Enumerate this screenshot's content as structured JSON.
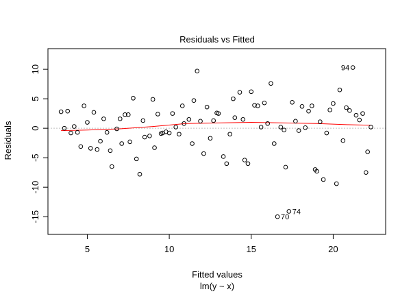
{
  "chart_data": {
    "type": "scatter",
    "title": "Residuals vs Fitted",
    "xlabel": "Fitted values",
    "sublabel": "lm(y ~ x)",
    "ylabel": "Residuals",
    "xlim": [
      2.6,
      23.2
    ],
    "ylim": [
      -18.0,
      13.5
    ],
    "xticks": [
      5,
      10,
      15,
      20
    ],
    "yticks": [
      -15,
      -10,
      -5,
      0,
      5,
      10
    ],
    "reference_line": 0,
    "grid": false,
    "colors": {
      "points": "#000000",
      "smooth": "#ff0000",
      "reference": "#bfbfbf"
    },
    "points": [
      [
        3.4,
        2.8
      ],
      [
        3.6,
        0.0
      ],
      [
        3.8,
        2.9
      ],
      [
        4.0,
        -0.8
      ],
      [
        4.2,
        0.3
      ],
      [
        4.4,
        -0.7
      ],
      [
        4.6,
        -3.1
      ],
      [
        4.8,
        3.8
      ],
      [
        5.0,
        1.0
      ],
      [
        5.2,
        -3.4
      ],
      [
        5.4,
        2.7
      ],
      [
        5.6,
        -3.6
      ],
      [
        5.8,
        -2.2
      ],
      [
        6.0,
        1.6
      ],
      [
        6.2,
        -0.7
      ],
      [
        6.4,
        -3.8
      ],
      [
        6.5,
        -6.5
      ],
      [
        6.8,
        -0.1
      ],
      [
        7.0,
        1.6
      ],
      [
        7.1,
        -2.6
      ],
      [
        7.3,
        2.3
      ],
      [
        7.5,
        2.3
      ],
      [
        7.6,
        -2.3
      ],
      [
        7.8,
        5.1
      ],
      [
        8.0,
        -5.2
      ],
      [
        8.2,
        -7.8
      ],
      [
        8.4,
        1.3
      ],
      [
        8.5,
        -1.5
      ],
      [
        8.8,
        -1.3
      ],
      [
        9.0,
        4.9
      ],
      [
        9.1,
        -3.3
      ],
      [
        9.3,
        2.4
      ],
      [
        9.5,
        -0.9
      ],
      [
        9.6,
        -0.8
      ],
      [
        9.8,
        -0.6
      ],
      [
        10.0,
        -0.8
      ],
      [
        10.2,
        2.5
      ],
      [
        10.4,
        0.2
      ],
      [
        10.6,
        -1.0
      ],
      [
        10.8,
        3.8
      ],
      [
        10.9,
        0.8
      ],
      [
        11.2,
        1.5
      ],
      [
        11.4,
        -2.6
      ],
      [
        11.5,
        4.7
      ],
      [
        11.7,
        9.7
      ],
      [
        11.9,
        1.2
      ],
      [
        12.1,
        -4.3
      ],
      [
        12.3,
        3.6
      ],
      [
        12.5,
        -1.7
      ],
      [
        12.7,
        1.3
      ],
      [
        12.9,
        2.6
      ],
      [
        13.0,
        2.5
      ],
      [
        13.3,
        -4.8
      ],
      [
        13.5,
        -6.0
      ],
      [
        13.7,
        -1.0
      ],
      [
        13.9,
        5.0
      ],
      [
        14.0,
        1.8
      ],
      [
        14.3,
        6.1
      ],
      [
        14.5,
        1.5
      ],
      [
        14.6,
        -5.4
      ],
      [
        14.8,
        -6.0
      ],
      [
        15.0,
        6.2
      ],
      [
        15.2,
        3.9
      ],
      [
        15.4,
        3.8
      ],
      [
        15.6,
        0.2
      ],
      [
        15.8,
        4.3
      ],
      [
        16.0,
        0.8
      ],
      [
        16.2,
        7.6
      ],
      [
        16.4,
        -2.6
      ],
      [
        16.6,
        -15.0
      ],
      [
        16.8,
        0.2
      ],
      [
        17.0,
        -0.3
      ],
      [
        17.1,
        -6.6
      ],
      [
        17.3,
        -14.1
      ],
      [
        17.5,
        4.4
      ],
      [
        17.7,
        1.2
      ],
      [
        17.9,
        -0.4
      ],
      [
        18.1,
        3.7
      ],
      [
        18.3,
        0.1
      ],
      [
        18.5,
        2.9
      ],
      [
        18.7,
        3.8
      ],
      [
        18.9,
        -7.0
      ],
      [
        19.0,
        -7.3
      ],
      [
        19.2,
        1.1
      ],
      [
        19.4,
        -8.7
      ],
      [
        19.6,
        -0.8
      ],
      [
        19.8,
        3.1
      ],
      [
        20.0,
        4.2
      ],
      [
        20.2,
        -9.4
      ],
      [
        20.4,
        6.5
      ],
      [
        20.6,
        -2.1
      ],
      [
        20.8,
        3.5
      ],
      [
        21.0,
        3.0
      ],
      [
        21.2,
        10.3
      ],
      [
        21.4,
        2.2
      ],
      [
        21.6,
        1.4
      ],
      [
        21.8,
        2.5
      ],
      [
        22.0,
        -7.5
      ],
      [
        22.1,
        -4.0
      ],
      [
        22.3,
        0.2
      ]
    ],
    "annotations": [
      {
        "text": "94",
        "x": 21.2,
        "y": 10.3,
        "side": "left"
      },
      {
        "text": "70",
        "x": 16.6,
        "y": -15.0,
        "side": "right"
      },
      {
        "text": "74",
        "x": 17.3,
        "y": -14.1,
        "side": "right"
      }
    ],
    "smooth": [
      [
        3.4,
        -0.4
      ],
      [
        5.0,
        -0.3
      ],
      [
        7.0,
        -0.1
      ],
      [
        9.0,
        0.3
      ],
      [
        11.0,
        0.8
      ],
      [
        13.0,
        0.9
      ],
      [
        15.0,
        1.0
      ],
      [
        17.0,
        0.9
      ],
      [
        19.0,
        0.8
      ],
      [
        21.0,
        0.6
      ],
      [
        22.3,
        0.5
      ]
    ]
  }
}
